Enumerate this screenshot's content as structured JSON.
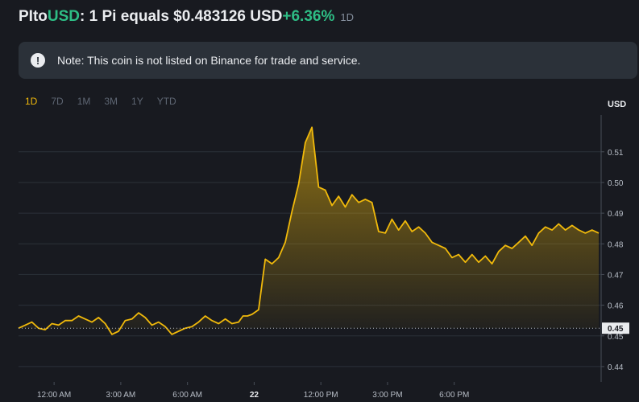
{
  "header": {
    "base": "PI",
    "to_word": " to ",
    "quote": "USD",
    "sentence": ": 1 Pi equals $0.483126 USD ",
    "change": "+6.36%",
    "timeframe": "1D"
  },
  "note": {
    "icon": "exclamation-circle-icon",
    "text": "Note: This coin is not listed on Binance for trade and service."
  },
  "ranges": [
    {
      "label": "1D",
      "active": true
    },
    {
      "label": "7D",
      "active": false
    },
    {
      "label": "1M",
      "active": false
    },
    {
      "label": "3M",
      "active": false
    },
    {
      "label": "1Y",
      "active": false
    },
    {
      "label": "YTD",
      "active": false
    }
  ],
  "colors": {
    "accent": "#f0b90b",
    "positive": "#2ebd85",
    "line": "#f0b90b",
    "grid": "#2b3139"
  },
  "chart_data": {
    "type": "area",
    "title": "",
    "ylabel": "USD",
    "ylim": [
      0.435,
      0.522
    ],
    "xlim": [
      -1.6,
      24.5
    ],
    "y_ticks": [
      0.44,
      0.45,
      0.46,
      0.47,
      0.48,
      0.49,
      0.5,
      0.51
    ],
    "x_tick_labels": [
      {
        "x": 0,
        "label": "12:00 AM"
      },
      {
        "x": 3,
        "label": "3:00 AM"
      },
      {
        "x": 6,
        "label": "6:00 AM"
      },
      {
        "x": 9,
        "label": "22"
      },
      {
        "x": 12,
        "label": "12:00 PM"
      },
      {
        "x": 15,
        "label": "3:00 PM"
      },
      {
        "x": 18,
        "label": "6:00 PM"
      }
    ],
    "reference_line": {
      "value": 0.4525,
      "label": "0.45"
    },
    "series": [
      {
        "name": "PI/USD",
        "x": [
          -1.6,
          -1.3,
          -1.0,
          -0.7,
          -0.4,
          -0.1,
          0.2,
          0.5,
          0.8,
          1.1,
          1.4,
          1.7,
          2.0,
          2.3,
          2.6,
          2.9,
          3.2,
          3.5,
          3.8,
          4.1,
          4.4,
          4.7,
          5.0,
          5.3,
          5.6,
          5.9,
          6.2,
          6.5,
          6.8,
          7.1,
          7.4,
          7.7,
          8.0,
          8.3,
          8.5,
          8.7,
          8.9,
          9.2,
          9.5,
          9.8,
          10.1,
          10.4,
          10.7,
          11.0,
          11.3,
          11.6,
          11.9,
          12.2,
          12.5,
          12.8,
          13.1,
          13.4,
          13.7,
          14.0,
          14.3,
          14.6,
          14.9,
          15.2,
          15.5,
          15.8,
          16.1,
          16.4,
          16.7,
          17.0,
          17.3,
          17.6,
          17.9,
          18.2,
          18.5,
          18.8,
          19.1,
          19.4,
          19.7,
          20.0,
          20.3,
          20.6,
          20.9,
          21.2,
          21.5,
          21.8,
          22.1,
          22.4,
          22.7,
          23.0,
          23.3,
          23.6,
          23.9,
          24.2,
          24.5
        ],
        "values": [
          0.4525,
          0.4535,
          0.4545,
          0.4525,
          0.452,
          0.454,
          0.4535,
          0.455,
          0.455,
          0.4565,
          0.4555,
          0.4545,
          0.456,
          0.454,
          0.4505,
          0.4515,
          0.455,
          0.4555,
          0.4575,
          0.456,
          0.4535,
          0.4545,
          0.453,
          0.4505,
          0.4515,
          0.4525,
          0.453,
          0.4545,
          0.4565,
          0.455,
          0.454,
          0.4555,
          0.454,
          0.4545,
          0.4565,
          0.4565,
          0.457,
          0.4585,
          0.475,
          0.4735,
          0.4755,
          0.4805,
          0.4905,
          0.4995,
          0.513,
          0.518,
          0.4985,
          0.4975,
          0.4925,
          0.4955,
          0.492,
          0.496,
          0.4935,
          0.4945,
          0.4935,
          0.484,
          0.4835,
          0.488,
          0.4845,
          0.4875,
          0.484,
          0.4855,
          0.4835,
          0.4805,
          0.4795,
          0.4785,
          0.4755,
          0.4765,
          0.474,
          0.4765,
          0.474,
          0.476,
          0.4735,
          0.4775,
          0.4795,
          0.4785,
          0.4805,
          0.4825,
          0.4795,
          0.4835,
          0.4855,
          0.4845,
          0.4865,
          0.4845,
          0.486,
          0.4845,
          0.4835,
          0.4845,
          0.4835
        ]
      }
    ]
  }
}
